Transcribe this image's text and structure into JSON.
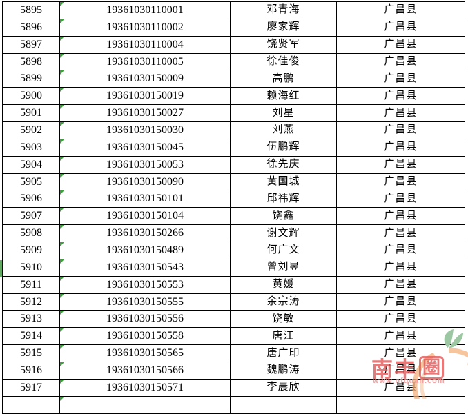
{
  "table": {
    "columns": [
      "row_number",
      "exam_code",
      "name",
      "county"
    ],
    "rows": [
      {
        "num": "5895",
        "code": "19361030110001",
        "name": "邓青海",
        "county": "广昌县"
      },
      {
        "num": "5896",
        "code": "19361030110002",
        "name": "廖家辉",
        "county": "广昌县"
      },
      {
        "num": "5897",
        "code": "19361030110004",
        "name": "饶贤军",
        "county": "广昌县"
      },
      {
        "num": "5898",
        "code": "19361030110005",
        "name": "徐佳俊",
        "county": "广昌县"
      },
      {
        "num": "5899",
        "code": "19361030150009",
        "name": "高鹏",
        "county": "广昌县"
      },
      {
        "num": "5900",
        "code": "19361030150019",
        "name": "赖海红",
        "county": "广昌县"
      },
      {
        "num": "5901",
        "code": "19361030150027",
        "name": "刘星",
        "county": "广昌县"
      },
      {
        "num": "5902",
        "code": "19361030150030",
        "name": "刘燕",
        "county": "广昌县"
      },
      {
        "num": "5903",
        "code": "19361030150045",
        "name": "伍鹏辉",
        "county": "广昌县"
      },
      {
        "num": "5904",
        "code": "19361030150053",
        "name": "徐先庆",
        "county": "广昌县"
      },
      {
        "num": "5905",
        "code": "19361030150090",
        "name": "黄国城",
        "county": "广昌县"
      },
      {
        "num": "5906",
        "code": "19361030150101",
        "name": "邱祎辉",
        "county": "广昌县"
      },
      {
        "num": "5907",
        "code": "19361030150104",
        "name": "饶鑫",
        "county": "广昌县"
      },
      {
        "num": "5908",
        "code": "19361030150266",
        "name": "谢文辉",
        "county": "广昌县"
      },
      {
        "num": "5909",
        "code": "19361030150489",
        "name": "何广文",
        "county": "广昌县"
      },
      {
        "num": "5910",
        "code": "19361030150543",
        "name": "曾刘昱",
        "county": "广昌县"
      },
      {
        "num": "5911",
        "code": "19361030150553",
        "name": "黄媛",
        "county": "广昌县"
      },
      {
        "num": "5912",
        "code": "19361030150555",
        "name": "余宗涛",
        "county": "广昌县"
      },
      {
        "num": "5913",
        "code": "19361030150556",
        "name": "饶敏",
        "county": "广昌县"
      },
      {
        "num": "5914",
        "code": "19361030150558",
        "name": "唐江",
        "county": "广昌县"
      },
      {
        "num": "5915",
        "code": "19361030150565",
        "name": "唐广印",
        "county": "广昌县"
      },
      {
        "num": "5916",
        "code": "19361030150566",
        "name": "魏鹏涛",
        "county": "广昌县"
      },
      {
        "num": "5917",
        "code": "19361030150571",
        "name": "李晨欣",
        "county": "广昌县"
      }
    ],
    "partial_next_row_has_error_indicator": true
  },
  "indicators": {
    "error_triangle_color": "#3ca03c",
    "selection_bar_color": "#63a963",
    "selection_bar_row": "5910",
    "grid_border_color": "#000000"
  },
  "watermark": {
    "brand_prefix": "南丰",
    "brand_boxed": "圈",
    "brand_full": "南丰圈",
    "url": "www.nfquan.com",
    "text_color": "#e05555",
    "url_color": "#f09b9b",
    "ring_color": "#f3b27c",
    "leaf_color": "#9cc7a2"
  }
}
